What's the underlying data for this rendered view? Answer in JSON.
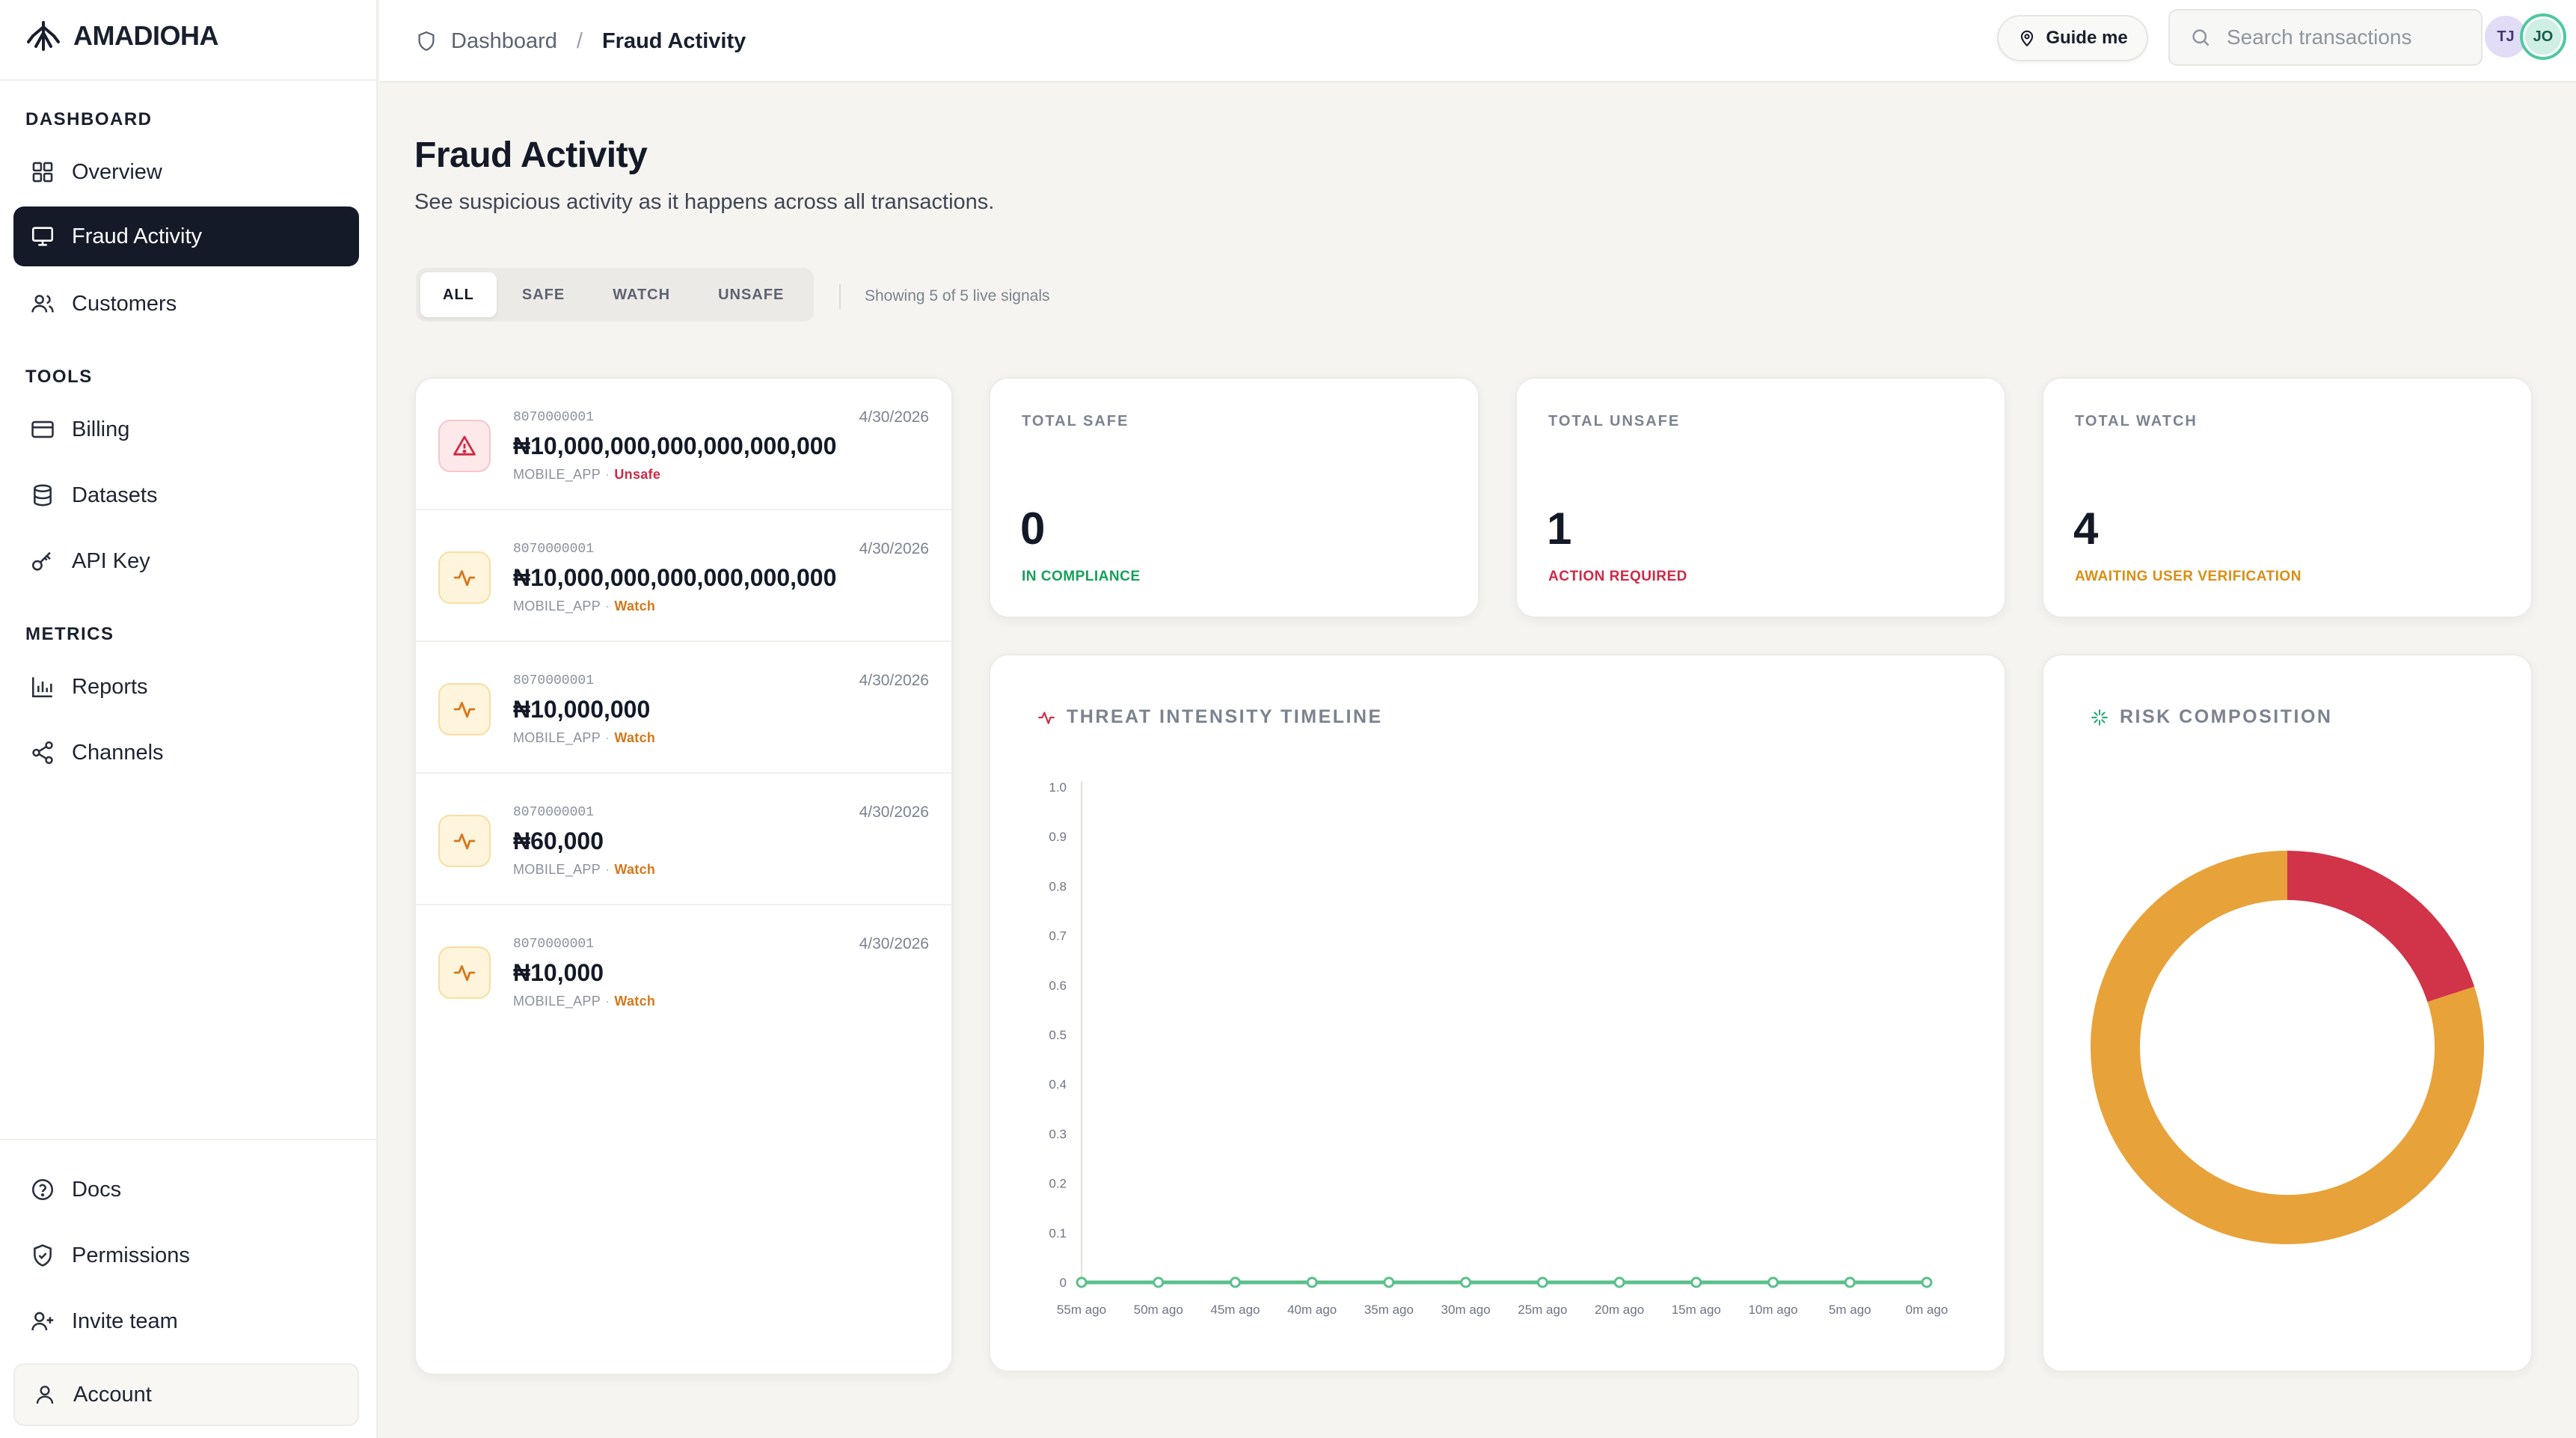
{
  "app": {
    "name": "AMADIOHA"
  },
  "sidebar": {
    "sections": [
      {
        "title": "DASHBOARD",
        "items": [
          {
            "label": "Overview",
            "icon": "grid-icon"
          },
          {
            "label": "Fraud Activity",
            "icon": "monitor-icon",
            "active": true
          },
          {
            "label": "Customers",
            "icon": "users-icon"
          }
        ]
      },
      {
        "title": "TOOLS",
        "items": [
          {
            "label": "Billing",
            "icon": "credit-card-icon"
          },
          {
            "label": "Datasets",
            "icon": "database-icon"
          },
          {
            "label": "API Key",
            "icon": "key-icon"
          }
        ]
      },
      {
        "title": "METRICS",
        "items": [
          {
            "label": "Reports",
            "icon": "bar-chart-icon"
          },
          {
            "label": "Channels",
            "icon": "share-icon"
          }
        ]
      }
    ],
    "bottom": [
      {
        "label": "Docs",
        "icon": "help-circle-icon"
      },
      {
        "label": "Permissions",
        "icon": "shield-check-icon"
      },
      {
        "label": "Invite team",
        "icon": "user-plus-icon"
      }
    ],
    "account": {
      "label": "Account",
      "icon": "user-icon"
    }
  },
  "header": {
    "breadcrumb": {
      "root": "Dashboard",
      "separator": "/",
      "current": "Fraud Activity"
    },
    "guide_label": "Guide me",
    "search": {
      "placeholder": "Search transactions",
      "value": ""
    },
    "avatars": [
      "TJ",
      "JO"
    ]
  },
  "page": {
    "title": "Fraud Activity",
    "subtitle": "See suspicious activity as it happens across all transactions."
  },
  "filters": {
    "tabs": [
      "ALL",
      "SAFE",
      "WATCH",
      "UNSAFE"
    ],
    "active": "ALL",
    "info": "Showing 5 of 5 live signals"
  },
  "transactions": [
    {
      "ref": "8070000001",
      "date": "4/30/2026",
      "amount": "₦10,000,000,000,000,000,000",
      "channel": "MOBILE_APP",
      "status": "Unsafe"
    },
    {
      "ref": "8070000001",
      "date": "4/30/2026",
      "amount": "₦10,000,000,000,000,000,000",
      "channel": "MOBILE_APP",
      "status": "Watch"
    },
    {
      "ref": "8070000001",
      "date": "4/30/2026",
      "amount": "₦10,000,000",
      "channel": "MOBILE_APP",
      "status": "Watch"
    },
    {
      "ref": "8070000001",
      "date": "4/30/2026",
      "amount": "₦60,000",
      "channel": "MOBILE_APP",
      "status": "Watch"
    },
    {
      "ref": "8070000001",
      "date": "4/30/2026",
      "amount": "₦10,000",
      "channel": "MOBILE_APP",
      "status": "Watch"
    }
  ],
  "stats": {
    "safe": {
      "label": "TOTAL SAFE",
      "value": "0",
      "caption": "IN COMPLIANCE"
    },
    "unsafe": {
      "label": "TOTAL UNSAFE",
      "value": "1",
      "caption": "ACTION REQUIRED"
    },
    "watch": {
      "label": "TOTAL WATCH",
      "value": "4",
      "caption": "AWAITING USER VERIFICATION"
    }
  },
  "colors": {
    "green": "#16a05a",
    "red": "#cf2a45",
    "amber": "#e8a23a",
    "line": "#5cc08c"
  },
  "chart_data": [
    {
      "type": "line",
      "title": "THREAT INTENSITY TIMELINE",
      "x": [
        "55m ago",
        "50m ago",
        "45m ago",
        "40m ago",
        "35m ago",
        "30m ago",
        "25m ago",
        "20m ago",
        "15m ago",
        "10m ago",
        "5m ago",
        "0m ago"
      ],
      "y_ticks": [
        "0",
        "0.1",
        "0.2",
        "0.3",
        "0.4",
        "0.5",
        "0.6",
        "0.7",
        "0.8",
        "0.9",
        "1.0"
      ],
      "ylim": [
        0,
        1
      ],
      "series": [
        {
          "values": [
            0,
            0,
            0,
            0,
            0,
            0,
            0,
            0,
            0,
            0,
            0,
            0
          ]
        }
      ],
      "grid": false
    },
    {
      "type": "pie",
      "title": "RISK COMPOSITION",
      "donut": true,
      "slices": [
        {
          "value": 1,
          "color": "#d13349"
        },
        {
          "value": 4,
          "color": "#e8a23a"
        }
      ]
    }
  ]
}
